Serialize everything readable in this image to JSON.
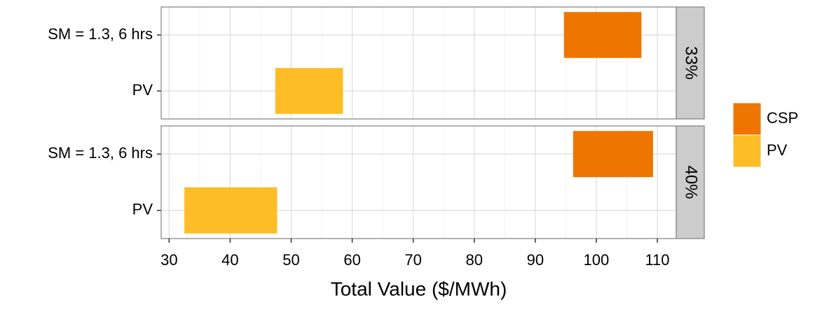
{
  "chart_data": {
    "type": "range-bar",
    "xlabel": "Total Value ($/MWh)",
    "xlim": [
      28.7,
      113.1
    ],
    "xticks": [
      30,
      40,
      50,
      60,
      70,
      80,
      90,
      100,
      110
    ],
    "grid": true,
    "legend": "right",
    "series": [
      {
        "name": "CSP",
        "color": "#ee7600"
      },
      {
        "name": "PV",
        "color": "#fdbd26"
      }
    ],
    "facets": [
      {
        "label": "33%",
        "categories": [
          "SM = 1.3, 6 hrs",
          "PV"
        ],
        "start": [
          94.7,
          47.4
        ],
        "end": [
          107.4,
          58.5
        ]
      },
      {
        "label": "40%",
        "categories": [
          "SM = 1.3, 6 hrs",
          "PV"
        ],
        "start": [
          96.2,
          32.5
        ],
        "end": [
          109.3,
          47.7
        ]
      }
    ]
  }
}
